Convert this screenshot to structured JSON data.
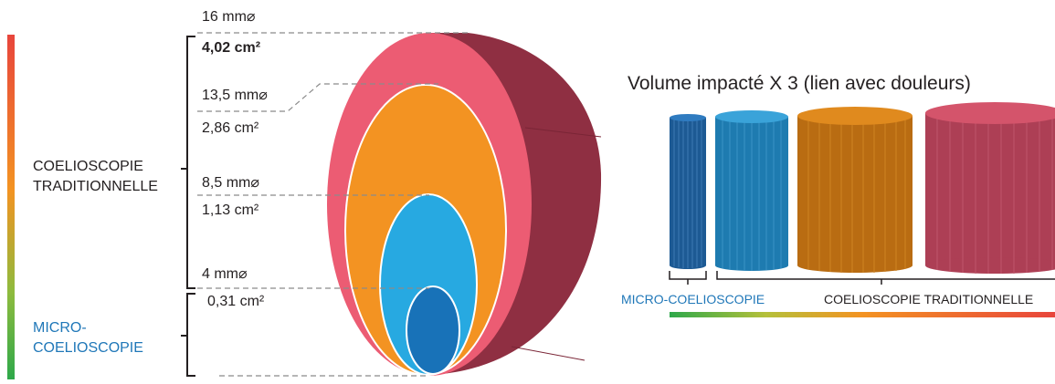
{
  "left_labels": {
    "traditional_line1": "COELIOSCOPIE",
    "traditional_line2": "TRADITIONNELLE",
    "micro_line1": "MICRO-",
    "micro_line2": "COELIOSCOPIE"
  },
  "sizes": [
    {
      "diameter": "16 mm",
      "area": "4,02 cm²"
    },
    {
      "diameter": "13,5 mm",
      "area": "2,86 cm²"
    },
    {
      "diameter": "8,5 mm",
      "area": "1,13 cm²"
    },
    {
      "diameter": "4 mm",
      "area": "0,31 cm²"
    }
  ],
  "diameter_symbol": "⌀",
  "right": {
    "title": "Volume impacté X 3 (lien avec douleurs)",
    "micro_label": "MICRO-COELIOSCOPIE",
    "traditional_label": "COELIOSCOPIE TRADITIONNELLE"
  },
  "colors": {
    "pink": "#ec5c73",
    "dark_red": "#8f2f42",
    "orange": "#f39322",
    "light_blue": "#27a9e1",
    "dark_blue": "#1872b8",
    "gradient_top": "#e8453c",
    "gradient_mid": "#f39322",
    "gradient_bottom": "#2ea84a"
  }
}
